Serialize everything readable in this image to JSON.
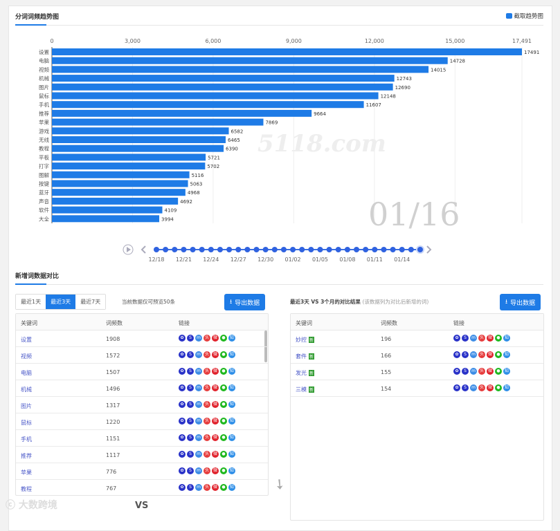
{
  "section1": {
    "title": "分词词频趋势图",
    "snapshot_label": "截取趋势图",
    "current_date": "01/16",
    "watermark": "5118.com"
  },
  "chart_data": {
    "type": "bar",
    "orientation": "horizontal",
    "categories": [
      "设置",
      "电脑",
      "视频",
      "机械",
      "图片",
      "鼠标",
      "手机",
      "推荐",
      "苹果",
      "游戏",
      "无线",
      "教程",
      "平板",
      "打字",
      "图解",
      "按键",
      "蓝牙",
      "声音",
      "软件",
      "大全"
    ],
    "values": [
      17491,
      14728,
      14015,
      12743,
      12690,
      12148,
      11607,
      9664,
      7869,
      6582,
      6465,
      6390,
      5721,
      5702,
      5116,
      5063,
      4968,
      4692,
      4109,
      3994
    ],
    "xticks": [
      "0",
      "3,000",
      "6,000",
      "9,000",
      "12,000",
      "15,000",
      "17,491"
    ],
    "xlim": [
      0,
      17491
    ],
    "grid": true,
    "color": "#1e7be6"
  },
  "timeline": {
    "dates": [
      "12/18",
      "12/19",
      "12/20",
      "12/21",
      "12/22",
      "12/23",
      "12/24",
      "12/25",
      "12/26",
      "12/27",
      "12/28",
      "12/29",
      "12/30",
      "12/31",
      "01/01",
      "01/02",
      "01/03",
      "01/04",
      "01/05",
      "01/06",
      "01/07",
      "01/08",
      "01/09",
      "01/10",
      "01/11",
      "01/12",
      "01/13",
      "01/14",
      "01/15",
      "01/16"
    ],
    "labels": [
      "12/18",
      "12/21",
      "12/24",
      "12/27",
      "12/30",
      "01/02",
      "01/05",
      "01/08",
      "01/11",
      "01/14"
    ],
    "selected": "01/16"
  },
  "section2": {
    "title": "新增词数据对比",
    "tabs": [
      "最近1天",
      "最近3天",
      "最近7天"
    ],
    "active_tab": "最近3天",
    "note": "当前数据仅可预览50条",
    "export_label": "导出数据",
    "right_title": "最近3天 VS 3个月的对比结果",
    "right_note": "(该数据列为对比后新增的词)",
    "columns": [
      "关键词",
      "词频数",
      "链接"
    ],
    "left_rows": [
      [
        "设置",
        "1908"
      ],
      [
        "视频",
        "1572"
      ],
      [
        "电脑",
        "1507"
      ],
      [
        "机械",
        "1496"
      ],
      [
        "图片",
        "1317"
      ],
      [
        "鼠标",
        "1220"
      ],
      [
        "手机",
        "1151"
      ],
      [
        "推荐",
        "1117"
      ],
      [
        "苹果",
        "776"
      ],
      [
        "教程",
        "767"
      ]
    ],
    "right_rows": [
      [
        "妙控",
        "196"
      ],
      [
        "套件",
        "166"
      ],
      [
        "发光",
        "155"
      ],
      [
        "三模",
        "154"
      ]
    ],
    "new_badge": "新",
    "link_icons": [
      {
        "name": "baidu-icon",
        "color": "#2932c8",
        "glyph": "✿"
      },
      {
        "name": "sogou-icon",
        "color": "#2932c8",
        "glyph": "S"
      },
      {
        "name": "shenma-icon",
        "color": "#3d8de6",
        "glyph": "m"
      },
      {
        "name": "toutiao-icon",
        "color": "#e63c3c",
        "glyph": "头"
      },
      {
        "name": "weibo-icon",
        "color": "#e0202a",
        "glyph": "微"
      },
      {
        "name": "wechat-icon",
        "color": "#1fb81f",
        "glyph": "●"
      },
      {
        "name": "zhihu-icon",
        "color": "#2d8ee8",
        "glyph": "知"
      }
    ]
  },
  "vs_label": "VS",
  "logo_text": "大数跨境"
}
